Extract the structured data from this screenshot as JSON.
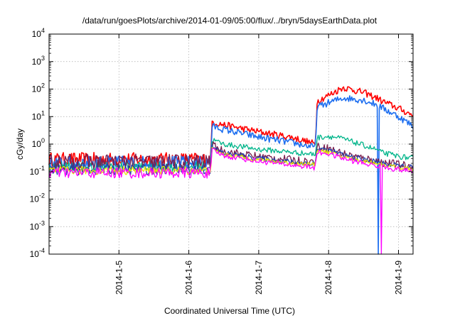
{
  "chart_data": {
    "type": "line",
    "title": "/data/run/goesPlots/archive/2014-01-09/05:00/flux/../bryn/5daysEarthData.plot",
    "xlabel": "Coordinated Universal Time (UTC)",
    "ylabel": "cGy/day",
    "yscale": "log",
    "ylim": [
      0.0001,
      10000
    ],
    "y_ticks": [
      {
        "value": 0.0001,
        "base": "10",
        "exp": "-4"
      },
      {
        "value": 0.001,
        "base": "10",
        "exp": "-3"
      },
      {
        "value": 0.01,
        "base": "10",
        "exp": "-2"
      },
      {
        "value": 0.1,
        "base": "10",
        "exp": "-1"
      },
      {
        "value": 1,
        "base": "10",
        "exp": "0"
      },
      {
        "value": 10,
        "base": "10",
        "exp": "1"
      },
      {
        "value": 100,
        "base": "10",
        "exp": "2"
      },
      {
        "value": 1000,
        "base": "10",
        "exp": "3"
      },
      {
        "value": 10000,
        "base": "10",
        "exp": "4"
      }
    ],
    "xlim": [
      "2014-01-04 00:00",
      "2014-01-09 05:00"
    ],
    "x_ticks": [
      "2014-1-5",
      "2014-1-6",
      "2014-1-7",
      "2014-1-8",
      "2014-1-9"
    ],
    "grid": true,
    "legend": "none",
    "x_hours": [
      0,
      12,
      24,
      36,
      48,
      55.5,
      56,
      60,
      72,
      84,
      91.5,
      92,
      96,
      101,
      108,
      113,
      114,
      120,
      125
    ],
    "series": [
      {
        "color": "#ff0000",
        "values": [
          0.28,
          0.28,
          0.28,
          0.28,
          0.28,
          0.28,
          6.5,
          5.0,
          2.8,
          1.7,
          1.0,
          36,
          60,
          115,
          75,
          45,
          38,
          20,
          11
        ],
        "noise": 0.25
      },
      {
        "color": "#1e6ff0",
        "values": [
          0.21,
          0.21,
          0.21,
          0.21,
          0.21,
          0.21,
          4.5,
          3.4,
          1.8,
          1.1,
          0.75,
          22,
          32,
          48,
          40,
          26,
          22,
          10,
          4.5
        ],
        "noise": 0.25,
        "spike": {
          "x": 113,
          "to": 0.0001
        }
      },
      {
        "color": "#00b58a",
        "values": [
          0.15,
          0.15,
          0.15,
          0.15,
          0.15,
          0.15,
          1.45,
          1.0,
          0.65,
          0.5,
          0.42,
          1.7,
          1.95,
          1.55,
          0.9,
          0.6,
          0.5,
          0.36,
          0.3
        ],
        "noise": 0.2
      },
      {
        "color": "#7a1e4e",
        "values": [
          0.22,
          0.22,
          0.22,
          0.22,
          0.22,
          0.22,
          0.9,
          0.55,
          0.35,
          0.26,
          0.22,
          0.8,
          0.7,
          0.45,
          0.3,
          0.24,
          0.22,
          0.18,
          0.15
        ],
        "noise": 0.3
      },
      {
        "color": "#2244aa",
        "values": [
          0.12,
          0.12,
          0.12,
          0.12,
          0.12,
          0.12,
          0.75,
          0.47,
          0.3,
          0.22,
          0.2,
          0.7,
          0.6,
          0.4,
          0.27,
          0.22,
          0.2,
          0.16,
          0.14
        ],
        "noise": 0.2
      },
      {
        "color": "#e8e800",
        "values": [
          0.11,
          0.11,
          0.11,
          0.11,
          0.11,
          0.11,
          0.65,
          0.42,
          0.27,
          0.2,
          0.18,
          0.6,
          0.5,
          0.34,
          0.24,
          0.2,
          0.18,
          0.14,
          0.12
        ],
        "noise": 0.15
      },
      {
        "color": "#ff00ff",
        "values": [
          0.09,
          0.09,
          0.09,
          0.09,
          0.09,
          0.09,
          0.6,
          0.38,
          0.24,
          0.17,
          0.14,
          0.5,
          0.45,
          0.3,
          0.2,
          0.16,
          0.15,
          0.12,
          0.1
        ],
        "noise": 0.2,
        "spike": {
          "x": 114,
          "to": 0.0001
        }
      }
    ]
  }
}
